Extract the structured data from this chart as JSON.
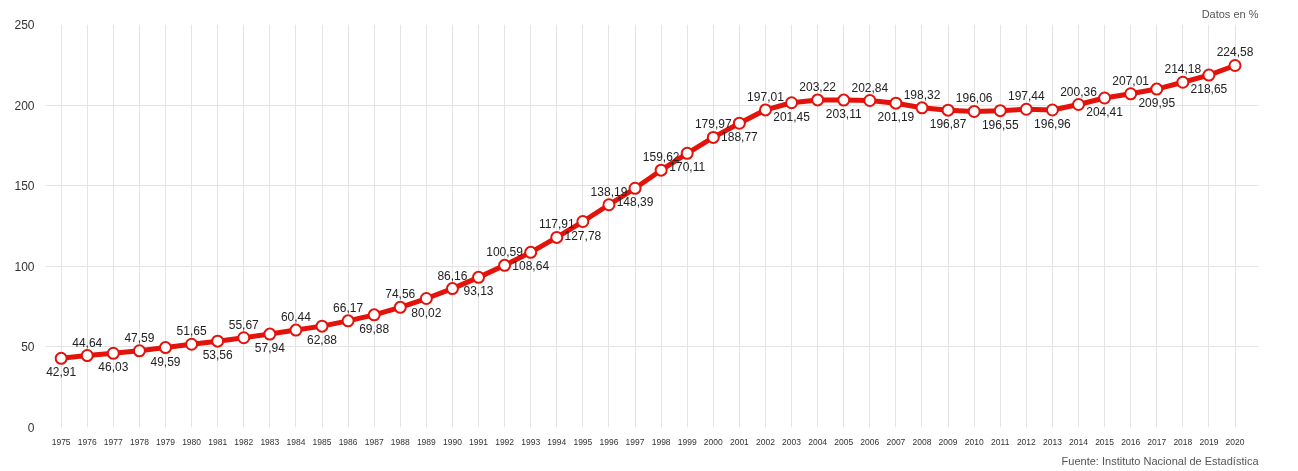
{
  "chart_data": {
    "type": "line",
    "categories": [
      "1975",
      "1976",
      "1977",
      "1978",
      "1979",
      "1980",
      "1981",
      "1982",
      "1983",
      "1984",
      "1985",
      "1986",
      "1987",
      "1988",
      "1989",
      "1990",
      "1991",
      "1992",
      "1993",
      "1994",
      "1995",
      "1996",
      "1997",
      "1998",
      "1999",
      "2000",
      "2001",
      "2002",
      "2003",
      "2004",
      "2005",
      "2006",
      "2007",
      "2008",
      "2009",
      "2010",
      "2011",
      "2012",
      "2013",
      "2014",
      "2015",
      "2016",
      "2017",
      "2018",
      "2019",
      "2020"
    ],
    "series": [
      {
        "color": "#e3120b",
        "values": [
          42.91,
          44.64,
          46.03,
          47.59,
          49.59,
          51.65,
          53.56,
          55.67,
          57.94,
          60.44,
          62.88,
          66.17,
          69.88,
          74.56,
          80.02,
          86.16,
          93.13,
          100.59,
          108.64,
          117.91,
          127.78,
          138.19,
          148.39,
          159.62,
          170.11,
          179.97,
          188.77,
          197.01,
          201.45,
          203.22,
          203.11,
          202.84,
          201.19,
          198.32,
          196.87,
          196.06,
          196.55,
          197.44,
          196.96,
          200.36,
          204.41,
          207.01,
          209.95,
          214.18,
          218.65,
          224.58
        ],
        "value_labels": [
          "42,91",
          "44,64",
          "46,03",
          "47,59",
          "49,59",
          "51,65",
          "53,56",
          "55,67",
          "57,94",
          "60,44",
          "62,88",
          "66,17",
          "69,88",
          "74,56",
          "80,02",
          "86,16",
          "93,13",
          "100,59",
          "108,64",
          "117,91",
          "127,78",
          "138,19",
          "148,39",
          "159,62",
          "170,11",
          "179,97",
          "188,77",
          "197,01",
          "201,45",
          "203,22",
          "203,11",
          "202,84",
          "201,19",
          "198,32",
          "196,87",
          "196,06",
          "196,55",
          "197,44",
          "196,96",
          "200,36",
          "204,41",
          "207,01",
          "209,95",
          "214,18",
          "218,65",
          "224,58"
        ]
      }
    ],
    "ylim": [
      0,
      250
    ],
    "yticks": [
      0,
      50,
      100,
      150,
      200,
      250
    ],
    "grid": true,
    "marker": "circle",
    "line_style": "solid",
    "annotations": [
      "Datos en %",
      "Fuente: Instituto Nacional de Estadística"
    ]
  }
}
